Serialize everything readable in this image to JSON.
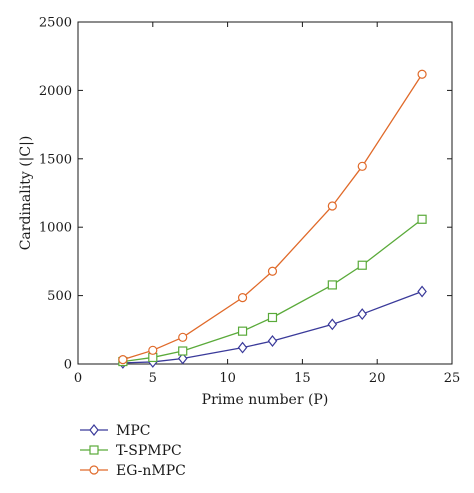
{
  "chart_data": {
    "type": "line",
    "xlabel": "Prime number (P)",
    "ylabel": "Cardinality (|C|)",
    "xlim": [
      0,
      25
    ],
    "ylim": [
      0,
      2500
    ],
    "xticks": [
      0,
      5,
      10,
      15,
      20,
      25
    ],
    "yticks": [
      0,
      500,
      1000,
      1500,
      2000,
      2500
    ],
    "grid": false,
    "legend_position": "bottom-left, below plot",
    "series": [
      {
        "name": "MPC",
        "marker": "diamond",
        "color": "#3a3a9a",
        "x": [
          3,
          5,
          7,
          11,
          13,
          17,
          19,
          23
        ],
        "y": [
          8,
          15,
          40,
          120,
          168,
          290,
          365,
          530
        ]
      },
      {
        "name": "T-SPMPC",
        "marker": "square",
        "color": "#5aaa3a",
        "x": [
          3,
          5,
          7,
          11,
          13,
          17,
          19,
          23
        ],
        "y": [
          18,
          48,
          95,
          240,
          340,
          578,
          722,
          1058
        ]
      },
      {
        "name": "EG-nMPC",
        "marker": "circle",
        "color": "#e06a2a",
        "x": [
          3,
          5,
          7,
          11,
          13,
          17,
          19,
          23
        ],
        "y": [
          32,
          100,
          195,
          485,
          678,
          1155,
          1445,
          2118
        ]
      }
    ]
  }
}
